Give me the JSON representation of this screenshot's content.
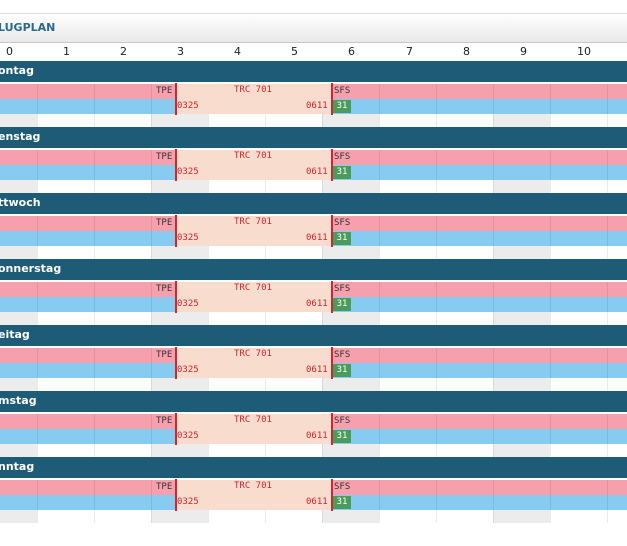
{
  "header": {
    "title": "LUGPLAN"
  },
  "timeline": {
    "hours": [
      "0",
      "1",
      "2",
      "3",
      "4",
      "5",
      "6",
      "7",
      "8",
      "9",
      "10"
    ]
  },
  "days": [
    {
      "name": "ontag"
    },
    {
      "name": "enstag"
    },
    {
      "name": "ttwoch"
    },
    {
      "name": "onnerstag"
    },
    {
      "name": "eitag"
    },
    {
      "name": "mstag"
    },
    {
      "name": "nntag"
    }
  ],
  "flight": {
    "origin": "TPE",
    "flight_number": "TRC 701",
    "destination": "SFS",
    "departure_time": "0325",
    "arrival_time": "0611",
    "day_badge": "31"
  },
  "colors": {
    "day_header": "#1e5b77",
    "outbound_row": "#f5a0ac",
    "inbound_row": "#87cbf0",
    "flight_block": "#f8dccd",
    "flight_accent": "#d0262f",
    "badge": "#4b9c5a"
  }
}
